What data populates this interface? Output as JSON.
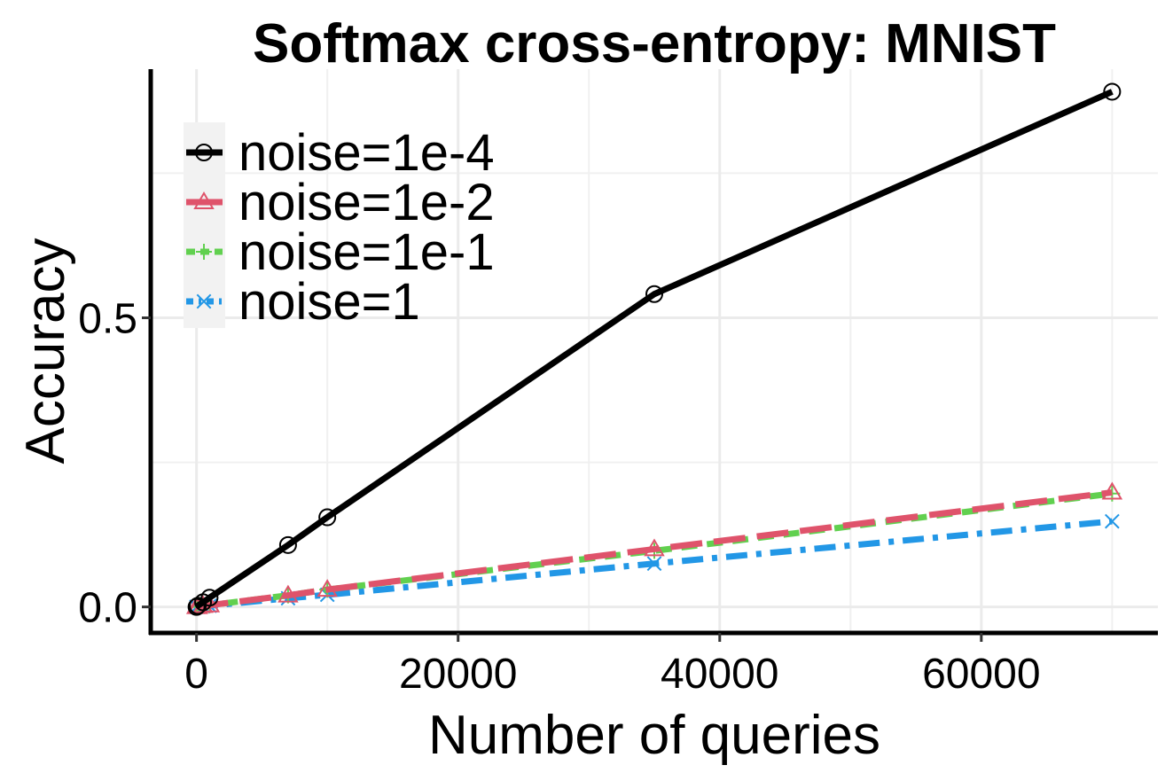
{
  "chart_data": {
    "type": "line",
    "title": "Softmax cross-entropy: MNIST",
    "xlabel": "Number of queries",
    "ylabel": "Accuracy",
    "xlim": [
      -3500,
      73500
    ],
    "ylim": [
      -0.045,
      0.93
    ],
    "xticks": [
      0,
      20000,
      40000,
      60000
    ],
    "xtick_labels": [
      "0",
      "20000",
      "40000",
      "60000"
    ],
    "xminor": [
      10000,
      30000,
      50000,
      70000
    ],
    "yticks": [
      0.0,
      0.5
    ],
    "ytick_labels": [
      "0.0",
      "0.5"
    ],
    "yminor": [
      0.25,
      0.75
    ],
    "grid": true,
    "legend_position": "top-left",
    "series": [
      {
        "name": "noise=1e-4",
        "color": "#000000",
        "dash": "solid",
        "marker": "circle",
        "x": [
          0,
          100,
          500,
          1000,
          7000,
          10000,
          35000,
          70000
        ],
        "y": [
          0.0,
          0.002,
          0.008,
          0.016,
          0.107,
          0.155,
          0.541,
          0.891
        ]
      },
      {
        "name": "noise=1e-2",
        "color": "#df536b",
        "dash": "long-dash",
        "marker": "triangle",
        "x": [
          0,
          100,
          500,
          1000,
          7000,
          10000,
          35000,
          70000
        ],
        "y": [
          0.0,
          0.0,
          0.002,
          0.003,
          0.02,
          0.03,
          0.1,
          0.198
        ]
      },
      {
        "name": "noise=1e-1",
        "color": "#61d04f",
        "dash": "dash",
        "marker": "plus",
        "x": [
          0,
          100,
          500,
          1000,
          7000,
          10000,
          35000,
          70000
        ],
        "y": [
          0.0,
          0.0,
          0.002,
          0.003,
          0.02,
          0.03,
          0.097,
          0.196
        ]
      },
      {
        "name": "noise=1",
        "color": "#2297e6",
        "dash": "dash-dot",
        "marker": "cross",
        "x": [
          0,
          100,
          500,
          1000,
          7000,
          10000,
          35000,
          70000
        ],
        "y": [
          0.0,
          0.0,
          0.001,
          0.002,
          0.015,
          0.021,
          0.075,
          0.148
        ]
      }
    ]
  }
}
